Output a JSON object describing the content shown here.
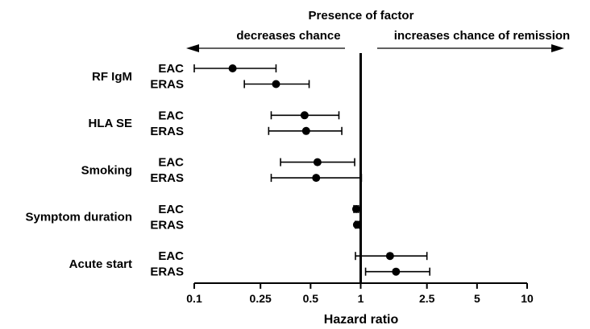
{
  "chart_data": {
    "type": "forest",
    "xscale": "log",
    "xlim": [
      0.1,
      10
    ],
    "xlabel": "Hazard ratio",
    "x_ticks": [
      0.1,
      0.25,
      0.5,
      1,
      2.5,
      5,
      10
    ],
    "x_tick_labels": [
      "0.1",
      "0.25",
      "0.5",
      "1",
      "2.5",
      "5",
      "10"
    ],
    "reference_line": 1,
    "header": {
      "title": "Presence of factor",
      "left_arrow_label": "decreases chance",
      "right_arrow_label": "increases chance of remission"
    },
    "groups": [
      {
        "factor": "RF IgM",
        "rows": [
          {
            "cohort": "EAC",
            "hr": 0.17,
            "lower": 0.1,
            "upper": 0.31
          },
          {
            "cohort": "ERAS",
            "hr": 0.31,
            "lower": 0.2,
            "upper": 0.49
          }
        ]
      },
      {
        "factor": "HLA SE",
        "rows": [
          {
            "cohort": "EAC",
            "hr": 0.46,
            "lower": 0.29,
            "upper": 0.74
          },
          {
            "cohort": "ERAS",
            "hr": 0.47,
            "lower": 0.28,
            "upper": 0.77
          }
        ]
      },
      {
        "factor": "Smoking",
        "rows": [
          {
            "cohort": "EAC",
            "hr": 0.55,
            "lower": 0.33,
            "upper": 0.92
          },
          {
            "cohort": "ERAS",
            "hr": 0.54,
            "lower": 0.29,
            "upper": 1.01
          }
        ]
      },
      {
        "factor": "Symptom duration",
        "rows": [
          {
            "cohort": "EAC",
            "hr": 0.94,
            "lower": 0.91,
            "upper": 0.97
          },
          {
            "cohort": "ERAS",
            "hr": 0.95,
            "lower": 0.93,
            "upper": 0.98
          }
        ]
      },
      {
        "factor": "Acute start",
        "rows": [
          {
            "cohort": "EAC",
            "hr": 1.5,
            "lower": 0.93,
            "upper": 2.5
          },
          {
            "cohort": "ERAS",
            "hr": 1.63,
            "lower": 1.07,
            "upper": 2.6
          }
        ]
      }
    ]
  }
}
